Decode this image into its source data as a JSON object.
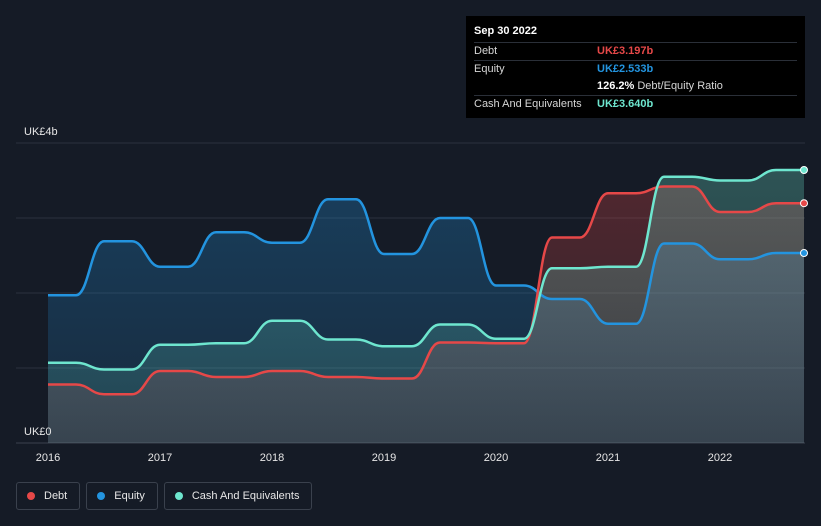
{
  "chart_data": {
    "type": "area",
    "y_unit_prefix": "UK£",
    "y_labels": [
      "UK£4b",
      "UK£0"
    ],
    "ylim": [
      0,
      4
    ],
    "xlim": [
      2016,
      2022.75
    ],
    "x_ticks": [
      "2016",
      "2017",
      "2018",
      "2019",
      "2020",
      "2021",
      "2022"
    ],
    "grid": true,
    "legend_position": "bottom-left",
    "colors": {
      "Debt": "#e64848",
      "Equity": "#2394df",
      "Cash And Equivalents": "#6ee6cf"
    },
    "series": [
      {
        "name": "Debt",
        "points": [
          [
            2016.0,
            0.78
          ],
          [
            2016.25,
            0.78
          ],
          [
            2016.5,
            0.65
          ],
          [
            2016.75,
            0.65
          ],
          [
            2017.0,
            0.96
          ],
          [
            2017.25,
            0.96
          ],
          [
            2017.5,
            0.88
          ],
          [
            2017.75,
            0.88
          ],
          [
            2018.0,
            0.96
          ],
          [
            2018.25,
            0.96
          ],
          [
            2018.5,
            0.88
          ],
          [
            2018.75,
            0.88
          ],
          [
            2019.0,
            0.86
          ],
          [
            2019.25,
            0.86
          ],
          [
            2019.5,
            1.34
          ],
          [
            2019.75,
            1.34
          ],
          [
            2020.0,
            1.33
          ],
          [
            2020.25,
            1.33
          ],
          [
            2020.5,
            2.74
          ],
          [
            2020.75,
            2.74
          ],
          [
            2021.0,
            3.33
          ],
          [
            2021.25,
            3.33
          ],
          [
            2021.5,
            3.42
          ],
          [
            2021.75,
            3.42
          ],
          [
            2022.0,
            3.08
          ],
          [
            2022.25,
            3.08
          ],
          [
            2022.5,
            3.197
          ],
          [
            2022.75,
            3.197
          ]
        ]
      },
      {
        "name": "Equity",
        "points": [
          [
            2016.0,
            1.97
          ],
          [
            2016.25,
            1.97
          ],
          [
            2016.5,
            2.69
          ],
          [
            2016.75,
            2.69
          ],
          [
            2017.0,
            2.35
          ],
          [
            2017.25,
            2.35
          ],
          [
            2017.5,
            2.81
          ],
          [
            2017.75,
            2.81
          ],
          [
            2018.0,
            2.67
          ],
          [
            2018.25,
            2.67
          ],
          [
            2018.5,
            3.25
          ],
          [
            2018.75,
            3.25
          ],
          [
            2019.0,
            2.52
          ],
          [
            2019.25,
            2.52
          ],
          [
            2019.5,
            3.0
          ],
          [
            2019.75,
            3.0
          ],
          [
            2020.0,
            2.1
          ],
          [
            2020.25,
            2.1
          ],
          [
            2020.5,
            1.92
          ],
          [
            2020.75,
            1.92
          ],
          [
            2021.0,
            1.59
          ],
          [
            2021.25,
            1.59
          ],
          [
            2021.5,
            2.66
          ],
          [
            2021.75,
            2.66
          ],
          [
            2022.0,
            2.45
          ],
          [
            2022.25,
            2.45
          ],
          [
            2022.5,
            2.533
          ],
          [
            2022.75,
            2.533
          ]
        ]
      },
      {
        "name": "Cash And Equivalents",
        "points": [
          [
            2016.0,
            1.07
          ],
          [
            2016.25,
            1.07
          ],
          [
            2016.5,
            0.98
          ],
          [
            2016.75,
            0.98
          ],
          [
            2017.0,
            1.31
          ],
          [
            2017.25,
            1.31
          ],
          [
            2017.5,
            1.33
          ],
          [
            2017.75,
            1.33
          ],
          [
            2018.0,
            1.63
          ],
          [
            2018.25,
            1.63
          ],
          [
            2018.5,
            1.38
          ],
          [
            2018.75,
            1.38
          ],
          [
            2019.0,
            1.29
          ],
          [
            2019.25,
            1.29
          ],
          [
            2019.5,
            1.58
          ],
          [
            2019.75,
            1.58
          ],
          [
            2020.0,
            1.39
          ],
          [
            2020.25,
            1.39
          ],
          [
            2020.5,
            2.33
          ],
          [
            2020.75,
            2.33
          ],
          [
            2021.0,
            2.35
          ],
          [
            2021.25,
            2.35
          ],
          [
            2021.5,
            3.55
          ],
          [
            2021.75,
            3.55
          ],
          [
            2022.0,
            3.5
          ],
          [
            2022.25,
            3.5
          ],
          [
            2022.5,
            3.64
          ],
          [
            2022.75,
            3.64
          ]
        ]
      }
    ]
  },
  "tooltip": {
    "date": "Sep 30 2022",
    "debt_label": "Debt",
    "debt_value": "UK£3.197b",
    "equity_label": "Equity",
    "equity_value": "UK£2.533b",
    "ratio_value": "126.2%",
    "ratio_label": "Debt/Equity Ratio",
    "cash_label": "Cash And Equivalents",
    "cash_value": "UK£3.640b"
  },
  "legend": {
    "debt": "Debt",
    "equity": "Equity",
    "cash": "Cash And Equivalents"
  }
}
